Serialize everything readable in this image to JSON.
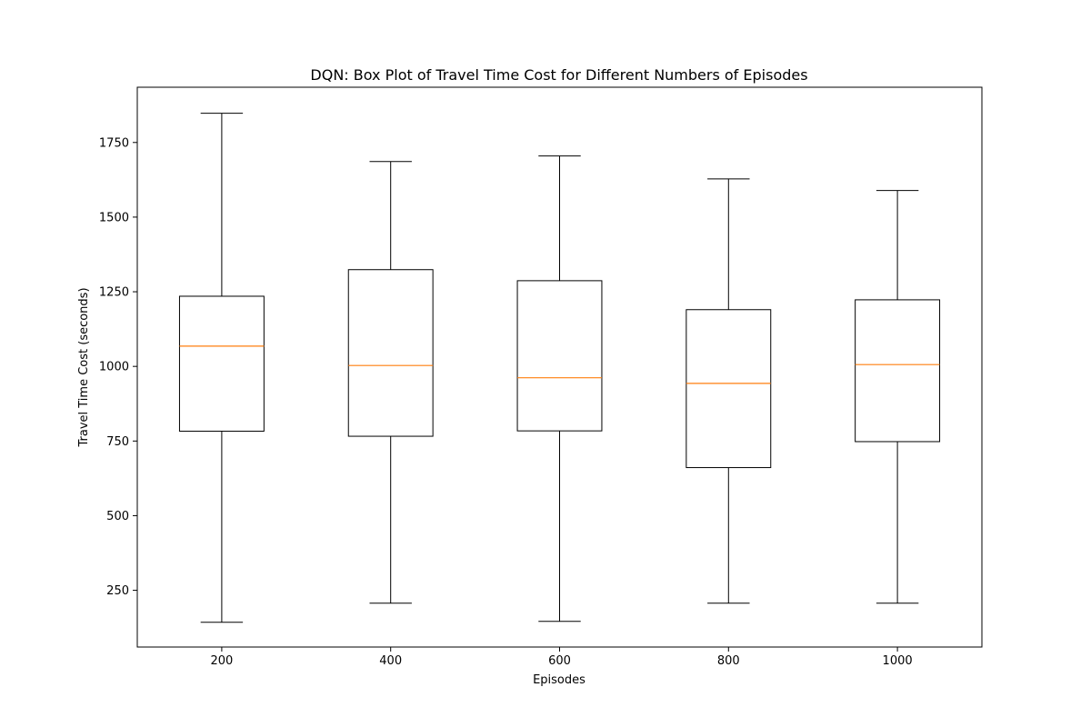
{
  "chart_data": {
    "type": "box",
    "title": "DQN: Box Plot of Travel Time Cost for Different Numbers of Episodes",
    "xlabel": "Episodes",
    "ylabel": "Travel Time Cost (seconds)",
    "categories": [
      "200",
      "400",
      "600",
      "800",
      "1000"
    ],
    "boxes": [
      {
        "category": "200",
        "whisker_low": 143,
        "q1": 783,
        "median": 1068,
        "q3": 1235,
        "whisker_high": 1848
      },
      {
        "category": "400",
        "whisker_low": 207,
        "q1": 766,
        "median": 1003,
        "q3": 1324,
        "whisker_high": 1686
      },
      {
        "category": "600",
        "whisker_low": 146,
        "q1": 784,
        "median": 962,
        "q3": 1287,
        "whisker_high": 1705
      },
      {
        "category": "800",
        "whisker_low": 207,
        "q1": 661,
        "median": 943,
        "q3": 1190,
        "whisker_high": 1628
      },
      {
        "category": "1000",
        "whisker_low": 207,
        "q1": 748,
        "median": 1006,
        "q3": 1223,
        "whisker_high": 1589
      }
    ],
    "yticks": [
      250,
      500,
      750,
      1000,
      1250,
      1500,
      1750
    ],
    "ylim": [
      60,
      1935
    ],
    "grid": false,
    "colors": {
      "box": "#000000",
      "median": "#ff7f0e",
      "whisker": "#000000"
    }
  }
}
